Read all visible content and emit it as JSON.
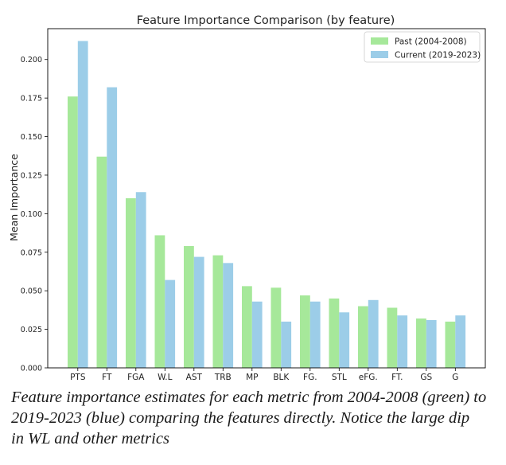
{
  "chart_data": {
    "type": "bar",
    "title": "Feature Importance Comparison (by feature)",
    "xlabel": "",
    "ylabel": "Mean Importance",
    "ylim": [
      0,
      0.22
    ],
    "yticks": [
      0.0,
      0.025,
      0.05,
      0.075,
      0.1,
      0.125,
      0.15,
      0.175,
      0.2
    ],
    "grid": false,
    "legend_position": "top-right",
    "categories": [
      "PTS",
      "FT",
      "FGA",
      "W.L",
      "AST",
      "TRB",
      "MP",
      "BLK",
      "FG.",
      "STL",
      "eFG.",
      "FT.",
      "GS",
      "G"
    ],
    "series": [
      {
        "name": "Past (2004-2008)",
        "color": "#a6e89a",
        "values": [
          0.176,
          0.137,
          0.11,
          0.086,
          0.079,
          0.073,
          0.053,
          0.052,
          0.047,
          0.045,
          0.04,
          0.039,
          0.032,
          0.03
        ]
      },
      {
        "name": "Current (2019-2023)",
        "color": "#9ccde8",
        "values": [
          0.212,
          0.182,
          0.114,
          0.057,
          0.072,
          0.068,
          0.043,
          0.03,
          0.043,
          0.036,
          0.044,
          0.034,
          0.031,
          0.034
        ]
      }
    ]
  },
  "caption": {
    "lines": [
      "Feature importance estimates for each metric from 2004-2008 (green) to",
      "2019-2023 (blue) comparing the features directly. Notice the large dip",
      "in WL and other metrics"
    ]
  }
}
